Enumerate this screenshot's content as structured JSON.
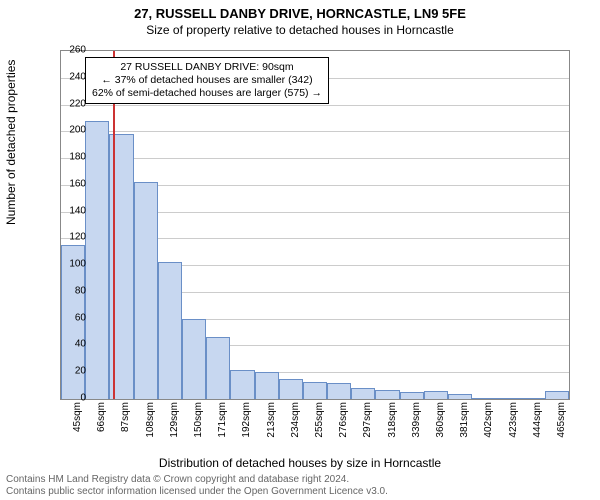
{
  "title": "27, RUSSELL DANBY DRIVE, HORNCASTLE, LN9 5FE",
  "subtitle": "Size of property relative to detached houses in Horncastle",
  "ylabel": "Number of detached properties",
  "xlabel": "Distribution of detached houses by size in Horncastle",
  "footer_line1": "Contains HM Land Registry data © Crown copyright and database right 2024.",
  "footer_line2": "Contains public sector information licensed under the Open Government Licence v3.0.",
  "annotation": {
    "line1": "27 RUSSELL DANBY DRIVE: 90sqm",
    "line2": "← 37% of detached houses are smaller (342)",
    "line3": "62% of semi-detached houses are larger (575) →"
  },
  "chart": {
    "type": "bar",
    "ylim": [
      0,
      260
    ],
    "ytick_step": 20,
    "xtick_start": 45,
    "xtick_step": 21,
    "xtick_count": 21,
    "xtick_suffix": "sqm",
    "bar_fill": "#c7d7f0",
    "bar_stroke": "#6a8fc7",
    "grid_color": "#cccccc",
    "border_color": "#888888",
    "marker_color": "#cc3333",
    "marker_x_value": 90,
    "x_domain": [
      45,
      486
    ],
    "values": [
      115,
      208,
      198,
      162,
      102,
      60,
      46,
      22,
      20,
      15,
      13,
      12,
      8,
      7,
      5,
      6,
      4,
      0,
      0,
      0,
      6
    ]
  }
}
